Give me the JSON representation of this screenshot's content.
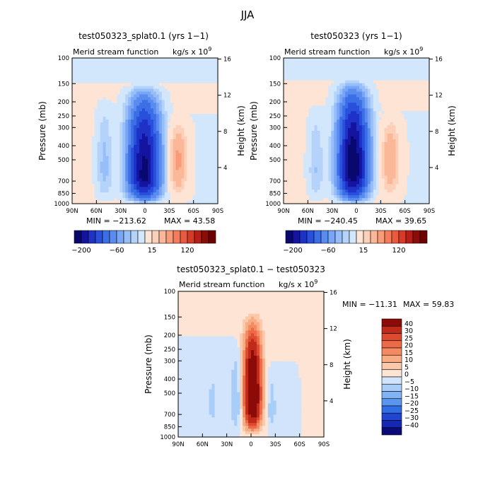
{
  "page_title": "JJA",
  "colors": {
    "neg": [
      "#08086e",
      "#1414a0",
      "#1e32c8",
      "#2850dc",
      "#3c6ee6",
      "#5a8cf0",
      "#78a5f5",
      "#96bef8",
      "#b4d2fa",
      "#d2e6fc"
    ],
    "pos": [
      "#fde4d4",
      "#fcd0b8",
      "#fbb898",
      "#f99a78",
      "#f47c5c",
      "#ea5a40",
      "#d63a28",
      "#b81e16",
      "#8c0c08",
      "#6e0000"
    ],
    "diff_neg": [
      "#0a0a78",
      "#1428b4",
      "#1e46d2",
      "#326ee6",
      "#5a96f0",
      "#82b4f5",
      "#a8cdf8",
      "#d2e4fb"
    ],
    "diff_pos": [
      "#fde4d4",
      "#fbc8aa",
      "#f9ac84",
      "#f48a62",
      "#ec6a48",
      "#dc4a30",
      "#c02a18",
      "#8c0a08"
    ]
  },
  "chart_data": [
    {
      "type": "heatmap",
      "title": "test050323_splat0.1 (yrs 1−1)",
      "subtitle": "Merid stream function",
      "units": "kg/s x 10",
      "units_exp": "9",
      "xlabel": "",
      "ylabel": "Pressure (mb)",
      "ylabel_right": "Height (km)",
      "xticks": [
        "90N",
        "60N",
        "30N",
        "0",
        "30S",
        "60S",
        "90S"
      ],
      "xtick_values": [
        90,
        60,
        30,
        0,
        -30,
        -60,
        -90
      ],
      "yticks": [
        "100",
        "150",
        "200",
        "250",
        "300",
        "400",
        "500",
        "700",
        "850",
        "1000"
      ],
      "ytick_values": [
        100,
        150,
        200,
        250,
        300,
        400,
        500,
        700,
        850,
        1000
      ],
      "height_ticks": [
        "4",
        "8",
        "12",
        "16"
      ],
      "height_tick_values": [
        4,
        8,
        12,
        16
      ],
      "ylim": [
        1000,
        100
      ],
      "stats_min_label": "MIN = −213.62",
      "stats_max_label": "MAX =  43.58",
      "min": -213.62,
      "max": 43.58,
      "colorbar_labels": [
        "−200",
        "−60",
        "15",
        "120"
      ],
      "features": [
        {
          "name": "main_cell",
          "lat": 1,
          "lat_width": 17,
          "p_top": 150,
          "p_core": 650,
          "amplitude": -213.62
        },
        {
          "name": "south_cell",
          "lat": -41,
          "lat_width": 11,
          "p_top": 240,
          "p_core": 520,
          "amplitude": 43.58
        },
        {
          "name": "north_cell",
          "lat": 50,
          "lat_width": 9,
          "p_top": 180,
          "p_core": 600,
          "amplitude": -18
        }
      ]
    },
    {
      "type": "heatmap",
      "title": "test050323 (yrs 1−1)",
      "subtitle": "Merid stream function",
      "units": "kg/s x 10",
      "units_exp": "9",
      "xlabel": "",
      "ylabel": "Pressure (mb)",
      "ylabel_right": "Height (km)",
      "xticks": [
        "90N",
        "60N",
        "30N",
        "0",
        "30S",
        "60S",
        "90S"
      ],
      "xtick_values": [
        90,
        60,
        30,
        0,
        -30,
        -60,
        -90
      ],
      "yticks": [
        "100",
        "150",
        "200",
        "250",
        "300",
        "400",
        "500",
        "700",
        "850",
        "1000"
      ],
      "ytick_values": [
        100,
        150,
        200,
        250,
        300,
        400,
        500,
        700,
        850,
        1000
      ],
      "height_ticks": [
        "4",
        "8",
        "12",
        "16"
      ],
      "height_tick_values": [
        4,
        8,
        12,
        16
      ],
      "ylim": [
        1000,
        100
      ],
      "stats_min_label": "MIN = −240.45",
      "stats_max_label": "MAX =  39.65",
      "min": -240.45,
      "max": 39.65,
      "colorbar_labels": [
        "−200",
        "−60",
        "15",
        "120"
      ],
      "features": [
        {
          "name": "main_cell",
          "lat": 4,
          "lat_width": 16,
          "p_top": 140,
          "p_core": 600,
          "amplitude": -240.45
        },
        {
          "name": "south_cell",
          "lat": -42,
          "lat_width": 11,
          "p_top": 230,
          "p_core": 520,
          "amplitude": 39.65
        },
        {
          "name": "north_cell",
          "lat": 50,
          "lat_width": 9,
          "p_top": 200,
          "p_core": 600,
          "amplitude": -15
        }
      ]
    },
    {
      "type": "heatmap",
      "title": "test050323_splat0.1 − test050323",
      "subtitle": "Merid stream function",
      "units": "kg/s x 10",
      "units_exp": "9",
      "xlabel": "",
      "ylabel": "Pressure (mb)",
      "ylabel_right": "Height (km)",
      "xticks": [
        "90N",
        "60N",
        "30N",
        "0",
        "30S",
        "60S",
        "90S"
      ],
      "xtick_values": [
        90,
        60,
        30,
        0,
        -30,
        -60,
        -90
      ],
      "yticks": [
        "100",
        "150",
        "200",
        "250",
        "300",
        "400",
        "500",
        "700",
        "850",
        "1000"
      ],
      "ytick_values": [
        100,
        150,
        200,
        250,
        300,
        400,
        500,
        700,
        850,
        1000
      ],
      "height_ticks": [
        "4",
        "8",
        "12",
        "16"
      ],
      "height_tick_values": [
        4,
        8,
        12,
        16
      ],
      "ylim": [
        1000,
        100
      ],
      "stats_min_label": "MIN = −11.31",
      "stats_max_label": "MAX =   59.83",
      "min": -11.31,
      "max": 59.83,
      "colorbar_labels": [
        "40",
        "30",
        "25",
        "20",
        "15",
        "10",
        "5",
        "0",
        "−5",
        "−10",
        "−15",
        "−20",
        "−25",
        "−30",
        "−40"
      ],
      "colorbar_values": [
        40,
        30,
        25,
        20,
        15,
        10,
        5,
        0,
        -5,
        -10,
        -15,
        -20,
        -25,
        -30,
        -40
      ],
      "features": [
        {
          "name": "main_diff",
          "lat": -2,
          "lat_width": 11,
          "p_top": 130,
          "p_core": 550,
          "amplitude": 59.83
        },
        {
          "name": "north_neg",
          "lat": 18,
          "lat_width": 7,
          "p_top": 200,
          "p_core": 600,
          "amplitude": -11.31
        },
        {
          "name": "south_neg",
          "lat": -25,
          "lat_width": 7,
          "p_top": 300,
          "p_core": 650,
          "amplitude": -8
        },
        {
          "name": "far_north_neg",
          "lat": 48,
          "lat_width": 7,
          "p_top": 200,
          "p_core": 650,
          "amplitude": -6
        }
      ]
    }
  ]
}
